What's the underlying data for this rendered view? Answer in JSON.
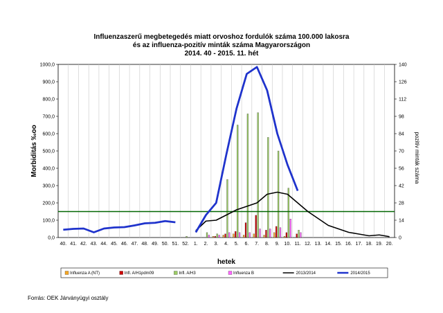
{
  "chart_data": {
    "type": "bar",
    "title_lines": [
      "Influenzaszerű megbetegedés miatt orvoshoz fordulók száma 100.000 lakosra",
      "és az influenza-pozitív minták száma Magyarországon",
      "2014. 40 - 2015. 11. hét"
    ],
    "xlabel": "hetek",
    "ylabel": "Morbiditás ‰oo",
    "ylabel_right": "pozitív minták száma",
    "ylim": [
      0,
      1000
    ],
    "ylim_right": [
      0,
      140
    ],
    "yticks": [
      "0,0",
      "100,0",
      "200,0",
      "300,0",
      "400,0",
      "500,0",
      "600,0",
      "700,0",
      "800,0",
      "900,0",
      "1000,0"
    ],
    "yticks_right": [
      "0",
      "14",
      "28",
      "42",
      "56",
      "70",
      "84",
      "98",
      "112",
      "126",
      "140"
    ],
    "categories": [
      "40.",
      "41.",
      "42.",
      "43.",
      "44.",
      "45.",
      "46.",
      "47.",
      "48.",
      "49.",
      "50.",
      "51.",
      "52.",
      "1.",
      "2.",
      "3.",
      "4.",
      "5.",
      "6.",
      "7.",
      "8.",
      "9.",
      "10.",
      "11.",
      "12.",
      "13.",
      "14.",
      "15.",
      "16.",
      "17.",
      "18.",
      "19.",
      "20."
    ],
    "bar_series": [
      {
        "name": "Influenza A (NT)",
        "color": "#f5a623",
        "values": [
          0,
          0,
          0,
          0,
          0,
          0,
          0,
          0,
          0,
          0,
          0,
          0,
          0,
          0,
          0,
          1,
          2,
          3,
          2,
          3,
          2,
          4,
          1,
          0,
          0,
          0,
          0,
          0,
          0,
          0,
          0,
          0,
          0
        ]
      },
      {
        "name": "Infl. A/H1pdm09",
        "color": "#cc0000",
        "values": [
          0,
          0,
          0,
          0,
          0,
          0,
          0,
          0,
          0,
          0,
          0,
          0,
          0,
          0,
          0,
          1,
          3,
          5,
          12,
          18,
          6,
          9,
          4,
          3,
          0,
          0,
          0,
          0,
          0,
          0,
          0,
          0,
          0
        ]
      },
      {
        "name": "Infl. A/H3",
        "color": "#9ccc65",
        "values": [
          0,
          0,
          0,
          0,
          0,
          0,
          0,
          0,
          0,
          0,
          0,
          0,
          1,
          0,
          4,
          3,
          47,
          91,
          100,
          101,
          81,
          70,
          40,
          6,
          0,
          0,
          0,
          0,
          0,
          0,
          0,
          0,
          0
        ]
      },
      {
        "name": "Influenza B",
        "color": "#ff66ff",
        "values": [
          0,
          0,
          0,
          0,
          0,
          0,
          0,
          0,
          0,
          0,
          0,
          0,
          0,
          0,
          2,
          2,
          4,
          4,
          4,
          7,
          7,
          8,
          15,
          4,
          0,
          0,
          0,
          0,
          0,
          0,
          0,
          0,
          0
        ]
      }
    ],
    "line_series": [
      {
        "name": "2013/2014",
        "color": "#000000",
        "values": [
          null,
          null,
          null,
          null,
          null,
          null,
          null,
          null,
          null,
          null,
          null,
          null,
          null,
          40,
          95,
          100,
          130,
          160,
          180,
          200,
          250,
          262,
          250,
          200,
          150,
          110,
          70,
          50,
          30,
          20,
          10,
          15,
          5
        ]
      },
      {
        "name": "2014/2015",
        "color": "#1f33cc",
        "values": [
          45,
          50,
          52,
          30,
          52,
          58,
          60,
          70,
          82,
          85,
          95,
          88,
          null,
          30,
          130,
          200,
          480,
          745,
          945,
          985,
          850,
          600,
          420,
          270,
          null,
          null,
          null,
          null,
          null,
          null,
          null,
          null,
          null
        ]
      }
    ],
    "threshold": {
      "value": 150,
      "color": "#006600"
    }
  },
  "source": "Forrás: OEK Járványügyi osztály"
}
